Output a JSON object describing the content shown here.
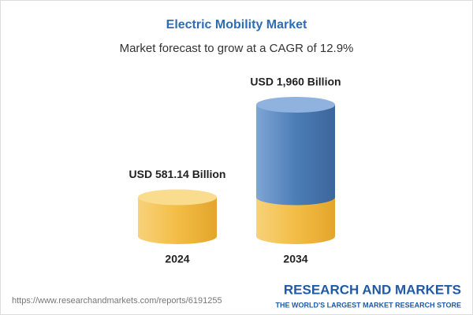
{
  "chart_data": {
    "type": "cylinder",
    "title": "Electric Mobility Market",
    "subtitle": "Market forecast to grow at a CAGR of 12.9%",
    "categories": [
      "2024",
      "2034"
    ],
    "values": [
      581.14,
      1960
    ],
    "value_labels": [
      "USD 581.14 Billion",
      "USD 1,960 Billion"
    ],
    "colors": [
      "#f3bd45",
      "#4d7db6"
    ]
  },
  "footer": {
    "url": "https://www.researchandmarkets.com/reports/6191255",
    "brand": "RESEARCH AND MARKETS",
    "tagline": "THE WORLD'S LARGEST MARKET RESEARCH STORE"
  }
}
